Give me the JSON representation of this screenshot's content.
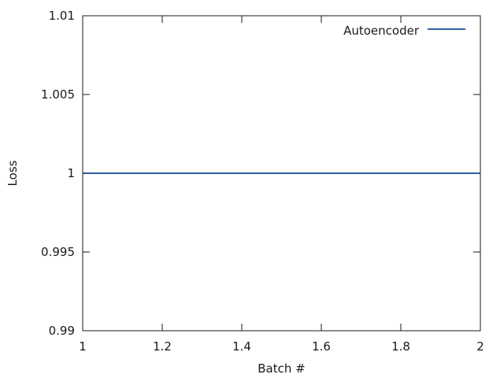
{
  "chart_data": {
    "type": "line",
    "title": "",
    "xlabel": "Batch #",
    "ylabel": "Loss",
    "xlim": [
      1,
      2
    ],
    "ylim": [
      0.99,
      1.01
    ],
    "x_ticks": [
      "1",
      "1.2",
      "1.4",
      "1.6",
      "1.8",
      "2"
    ],
    "y_ticks": [
      "0.99",
      "0.995",
      "1",
      "1.005",
      "1.01"
    ],
    "grid": false,
    "legend_position": "top-right",
    "series": [
      {
        "name": "Autoencoder",
        "color": "#2b5ea8",
        "x": [
          1,
          2
        ],
        "y": [
          1,
          1
        ]
      }
    ]
  }
}
